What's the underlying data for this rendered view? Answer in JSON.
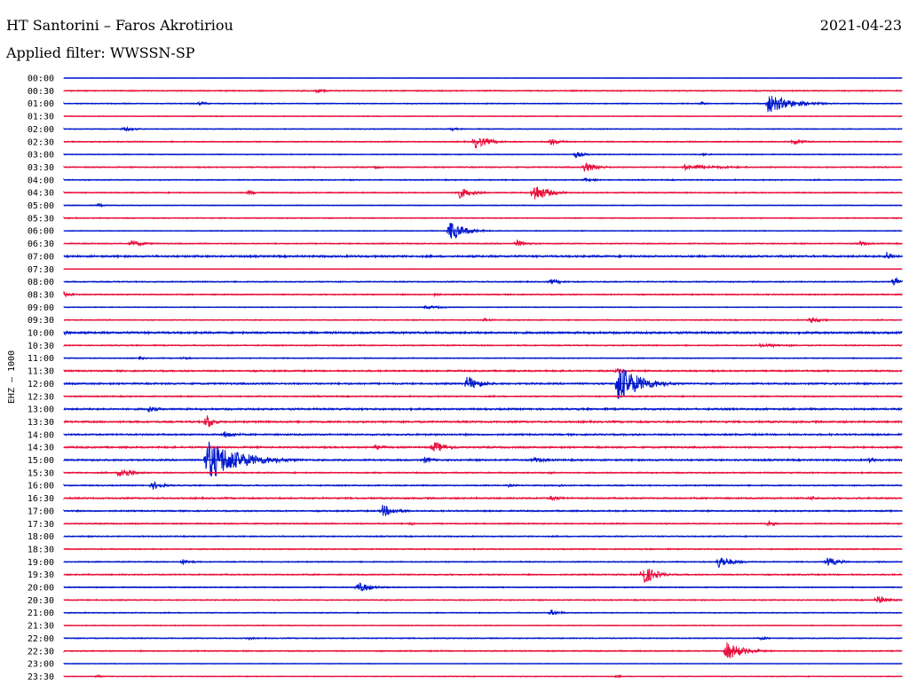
{
  "header": {
    "station": "HT Santorini – Faros Akrotiriou",
    "date": "2021-04-23",
    "filter": "Applied filter: WWSSN-SP"
  },
  "chart_data": {
    "type": "line",
    "channel_label": "EHZ – 1000",
    "colors": {
      "even": "#0018cc",
      "odd": "#e8103c"
    },
    "rows": [
      {
        "time": "00:00",
        "noise": 0.4,
        "events": []
      },
      {
        "time": "00:30",
        "noise": 0.9,
        "events": [
          {
            "at": 0.3,
            "amp": 2.5,
            "dur": 0.025
          }
        ]
      },
      {
        "time": "01:00",
        "noise": 0.8,
        "events": [
          {
            "at": 0.16,
            "amp": 2.5,
            "dur": 0.02
          },
          {
            "at": 0.76,
            "amp": 3,
            "dur": 0.01
          },
          {
            "at": 0.84,
            "amp": 11,
            "dur": 0.05
          }
        ]
      },
      {
        "time": "01:30",
        "noise": 0.6,
        "events": []
      },
      {
        "time": "02:00",
        "noise": 0.7,
        "events": [
          {
            "at": 0.07,
            "amp": 3,
            "dur": 0.025
          },
          {
            "at": 0.46,
            "amp": 2,
            "dur": 0.02
          }
        ]
      },
      {
        "time": "02:30",
        "noise": 0.9,
        "events": [
          {
            "at": 0.49,
            "amp": 8,
            "dur": 0.03
          },
          {
            "at": 0.58,
            "amp": 4,
            "dur": 0.025
          },
          {
            "at": 0.87,
            "amp": 4,
            "dur": 0.025
          }
        ]
      },
      {
        "time": "03:00",
        "noise": 0.7,
        "events": [
          {
            "at": 0.61,
            "amp": 4,
            "dur": 0.02
          },
          {
            "at": 0.76,
            "amp": 2,
            "dur": 0.02
          }
        ]
      },
      {
        "time": "03:30",
        "noise": 0.9,
        "events": [
          {
            "at": 0.37,
            "amp": 2,
            "dur": 0.02
          },
          {
            "at": 0.62,
            "amp": 6,
            "dur": 0.03
          },
          {
            "at": 0.74,
            "amp": 3,
            "dur": 0.1
          }
        ]
      },
      {
        "time": "04:00",
        "noise": 0.9,
        "events": [
          {
            "at": 0.62,
            "amp": 2,
            "dur": 0.04
          }
        ]
      },
      {
        "time": "04:30",
        "noise": 0.9,
        "events": [
          {
            "at": 0.22,
            "amp": 3,
            "dur": 0.02
          },
          {
            "at": 0.47,
            "amp": 7,
            "dur": 0.03
          },
          {
            "at": 0.56,
            "amp": 11,
            "dur": 0.03
          }
        ]
      },
      {
        "time": "05:00",
        "noise": 0.6,
        "events": [
          {
            "at": 0.04,
            "amp": 2,
            "dur": 0.015
          }
        ]
      },
      {
        "time": "05:30",
        "noise": 0.8,
        "events": []
      },
      {
        "time": "06:00",
        "noise": 0.7,
        "events": [
          {
            "at": 0.46,
            "amp": 12,
            "dur": 0.03
          }
        ]
      },
      {
        "time": "06:30",
        "noise": 0.9,
        "events": [
          {
            "at": 0.08,
            "amp": 4,
            "dur": 0.03
          },
          {
            "at": 0.54,
            "amp": 4,
            "dur": 0.025
          },
          {
            "at": 0.95,
            "amp": 3,
            "dur": 0.02
          }
        ]
      },
      {
        "time": "07:00",
        "noise": 1.5,
        "events": [
          {
            "at": 0.98,
            "amp": 6,
            "dur": 0.02
          }
        ]
      },
      {
        "time": "07:30",
        "noise": 0.5,
        "events": []
      },
      {
        "time": "08:00",
        "noise": 0.9,
        "events": [
          {
            "at": 0.58,
            "amp": 3,
            "dur": 0.03
          },
          {
            "at": 0.99,
            "amp": 7,
            "dur": 0.015
          }
        ]
      },
      {
        "time": "08:30",
        "noise": 0.9,
        "events": [
          {
            "at": 0.0,
            "amp": 3,
            "dur": 0.02
          },
          {
            "at": 0.44,
            "amp": 2,
            "dur": 0.02
          }
        ]
      },
      {
        "time": "09:00",
        "noise": 0.7,
        "events": [
          {
            "at": 0.43,
            "amp": 2,
            "dur": 0.05
          }
        ]
      },
      {
        "time": "09:30",
        "noise": 0.8,
        "events": [
          {
            "at": 0.5,
            "amp": 2,
            "dur": 0.02
          },
          {
            "at": 0.89,
            "amp": 4,
            "dur": 0.025
          }
        ]
      },
      {
        "time": "10:00",
        "noise": 1.6,
        "events": [
          {
            "at": 0.0,
            "amp": 3,
            "dur": 0.02
          }
        ]
      },
      {
        "time": "10:30",
        "noise": 0.9,
        "events": [
          {
            "at": 0.83,
            "amp": 2,
            "dur": 0.08
          }
        ]
      },
      {
        "time": "11:00",
        "noise": 0.8,
        "events": [
          {
            "at": 0.09,
            "amp": 2,
            "dur": 0.015
          },
          {
            "at": 0.14,
            "amp": 2,
            "dur": 0.02
          }
        ]
      },
      {
        "time": "11:30",
        "noise": 1.2,
        "events": [
          {
            "at": 0.66,
            "amp": 4,
            "dur": 0.02
          }
        ]
      },
      {
        "time": "12:00",
        "noise": 1.3,
        "events": [
          {
            "at": 0.48,
            "amp": 9,
            "dur": 0.03
          },
          {
            "at": 0.66,
            "amp": 24,
            "dur": 0.045
          }
        ]
      },
      {
        "time": "12:30",
        "noise": 1.0,
        "events": []
      },
      {
        "time": "13:00",
        "noise": 1.4,
        "events": [
          {
            "at": 0.1,
            "amp": 4,
            "dur": 0.025
          }
        ]
      },
      {
        "time": "13:30",
        "noise": 1.4,
        "events": [
          {
            "at": 0.17,
            "amp": 10,
            "dur": 0.015
          }
        ]
      },
      {
        "time": "14:00",
        "noise": 1.3,
        "events": [
          {
            "at": 0.19,
            "amp": 4,
            "dur": 0.03
          }
        ]
      },
      {
        "time": "14:30",
        "noise": 1.3,
        "events": [
          {
            "at": 0.37,
            "amp": 3,
            "dur": 0.03
          },
          {
            "at": 0.44,
            "amp": 7,
            "dur": 0.03
          }
        ]
      },
      {
        "time": "15:00",
        "noise": 1.3,
        "events": [
          {
            "at": 0.17,
            "amp": 24,
            "dur": 0.07
          },
          {
            "at": 0.43,
            "amp": 4,
            "dur": 0.02
          },
          {
            "at": 0.56,
            "amp": 3,
            "dur": 0.04
          },
          {
            "at": 0.96,
            "amp": 3,
            "dur": 0.02
          }
        ]
      },
      {
        "time": "15:30",
        "noise": 1.0,
        "events": [
          {
            "at": 0.066,
            "amp": 8,
            "dur": 0.025
          },
          {
            "at": 0.58,
            "amp": 2,
            "dur": 0.01
          }
        ]
      },
      {
        "time": "16:00",
        "noise": 1.0,
        "events": [
          {
            "at": 0.105,
            "amp": 5,
            "dur": 0.025
          },
          {
            "at": 0.53,
            "amp": 2,
            "dur": 0.02
          },
          {
            "at": 0.59,
            "amp": 2,
            "dur": 0.02
          }
        ]
      },
      {
        "time": "16:30",
        "noise": 1.2,
        "events": [
          {
            "at": 0.58,
            "amp": 3,
            "dur": 0.03
          },
          {
            "at": 0.89,
            "amp": 3,
            "dur": 0.02
          }
        ]
      },
      {
        "time": "17:00",
        "noise": 1.1,
        "events": [
          {
            "at": 0.38,
            "amp": 7,
            "dur": 0.03
          }
        ]
      },
      {
        "time": "17:30",
        "noise": 1.0,
        "events": [
          {
            "at": 0.41,
            "amp": 2,
            "dur": 0.02
          },
          {
            "at": 0.84,
            "amp": 3,
            "dur": 0.02
          }
        ]
      },
      {
        "time": "18:00",
        "noise": 0.9,
        "events": []
      },
      {
        "time": "18:30",
        "noise": 0.9,
        "events": []
      },
      {
        "time": "19:00",
        "noise": 0.9,
        "events": [
          {
            "at": 0.14,
            "amp": 4,
            "dur": 0.02
          },
          {
            "at": 0.78,
            "amp": 8,
            "dur": 0.03
          },
          {
            "at": 0.91,
            "amp": 6,
            "dur": 0.025
          }
        ]
      },
      {
        "time": "19:30",
        "noise": 1.0,
        "events": [
          {
            "at": 0.69,
            "amp": 13,
            "dur": 0.025
          }
        ]
      },
      {
        "time": "20:00",
        "noise": 0.8,
        "events": [
          {
            "at": 0.35,
            "amp": 6,
            "dur": 0.03
          }
        ]
      },
      {
        "time": "20:30",
        "noise": 0.9,
        "events": [
          {
            "at": 0.97,
            "amp": 5,
            "dur": 0.025
          }
        ]
      },
      {
        "time": "21:00",
        "noise": 0.8,
        "events": [
          {
            "at": 0.58,
            "amp": 4,
            "dur": 0.02
          }
        ]
      },
      {
        "time": "21:30",
        "noise": 0.6,
        "events": []
      },
      {
        "time": "22:00",
        "noise": 0.8,
        "events": [
          {
            "at": 0.22,
            "amp": 2,
            "dur": 0.015
          },
          {
            "at": 0.83,
            "amp": 2,
            "dur": 0.02
          }
        ]
      },
      {
        "time": "22:30",
        "noise": 0.9,
        "events": [
          {
            "at": 0.79,
            "amp": 11,
            "dur": 0.035
          }
        ]
      },
      {
        "time": "23:00",
        "noise": 0.5,
        "events": []
      },
      {
        "time": "23:30",
        "noise": 0.6,
        "events": [
          {
            "at": 0.04,
            "amp": 2,
            "dur": 0.01
          },
          {
            "at": 0.66,
            "amp": 2,
            "dur": 0.01
          }
        ]
      }
    ]
  }
}
